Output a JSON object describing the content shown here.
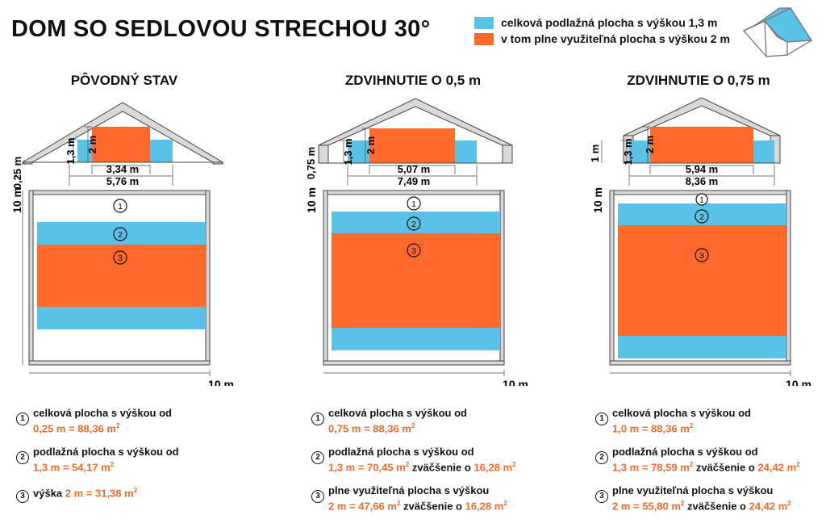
{
  "title": "DOM SO SEDLOVOU STRECHOU 30°",
  "colors": {
    "blue": "#5bc2e7",
    "orange": "#ff6a2c",
    "wall": "#d9d9d9",
    "stroke": "#444444"
  },
  "legend": [
    {
      "color": "#5bc2e7",
      "label": "celková podlažná plocha s výškou 1,3 m"
    },
    {
      "color": "#ff6a2c",
      "label": "v tom plne využiteľná plocha s výškou 2 m"
    }
  ],
  "columns": [
    {
      "title": "PÔVODNÝ STAV",
      "wall_height": "0,25 m",
      "h13": "1,3 m",
      "h2": "2 m",
      "inner_width": "3,34 m",
      "outer_width": "5,76 m",
      "plan_height": "10 m",
      "plan_width": "10 m",
      "markers": [
        "1",
        "2",
        "3"
      ],
      "stats": [
        {
          "num": "1",
          "line1": "celková plocha s výškou od",
          "line2_o": "0,25 m = 88,36 m",
          "line2_sup": "2",
          "line2_b": "",
          "line2_o2": "",
          "line2_sup2": ""
        },
        {
          "num": "2",
          "line1": "podlažná plocha s výškou od",
          "line2_o": "1,3 m = 54,17 m",
          "line2_sup": "2",
          "line2_b": "",
          "line2_o2": "",
          "line2_sup2": ""
        },
        {
          "num": "3",
          "line1": "výška ",
          "line1_o": "2 m = 31,38 m",
          "line1_sup": "2"
        }
      ]
    },
    {
      "title": "ZDVIHNUTIE O 0,5 m",
      "wall_height": "0,75 m",
      "h13": "1,3 m",
      "h2": "2 m",
      "inner_width": "5,07 m",
      "outer_width": "7,49 m",
      "plan_height": "10 m",
      "plan_width": "10 m",
      "markers": [
        "1",
        "2",
        "3"
      ],
      "stats": [
        {
          "num": "1",
          "line1": "celková plocha s výškou od",
          "line2_o": "0,75 m = 88,36 m",
          "line2_sup": "2",
          "line2_b": "",
          "line2_o2": "",
          "line2_sup2": ""
        },
        {
          "num": "2",
          "line1": "podlažná plocha s výškou od",
          "line2_o": "1,3 m = 70,45 m",
          "line2_sup": "2",
          "line2_b": " zväčšenie o ",
          "line2_o2": "16,28 m",
          "line2_sup2": "2"
        },
        {
          "num": "3",
          "line1": "plne využiteľná plocha s výškou",
          "line2_o": "2 m = 47,66 m",
          "line2_sup": "2",
          "line2_b": " zväčšenie o ",
          "line2_o2": "16,28 m",
          "line2_sup2": "2"
        }
      ]
    },
    {
      "title": "ZDVIHNUTIE O 0,75 m",
      "wall_height": "1 m",
      "h13": "1,3 m",
      "h2": "2 m",
      "inner_width": "5,94 m",
      "outer_width": "8,36 m",
      "plan_height": "10 m",
      "plan_width": "10 m",
      "markers": [
        "1",
        "2",
        "3"
      ],
      "stats": [
        {
          "num": "1",
          "line1": "celková plocha s výškou od",
          "line2_o": "1,0 m = 88,36 m",
          "line2_sup": "2",
          "line2_b": "",
          "line2_o2": "",
          "line2_sup2": ""
        },
        {
          "num": "2",
          "line1": "podlažná plocha s výškou od",
          "line2_o": "1,3 m = 78,59 m",
          "line2_sup": "2",
          "line2_b": " zväčšenie o ",
          "line2_o2": "24,42 m",
          "line2_sup2": "2"
        },
        {
          "num": "3",
          "line1": "plne využiteľná plocha s výškou",
          "line2_o": "2 m = 55,80 m",
          "line2_sup": "2",
          "line2_b": " zväčšenie o ",
          "line2_o2": "24,42 m",
          "line2_sup2": "2"
        }
      ]
    }
  ]
}
